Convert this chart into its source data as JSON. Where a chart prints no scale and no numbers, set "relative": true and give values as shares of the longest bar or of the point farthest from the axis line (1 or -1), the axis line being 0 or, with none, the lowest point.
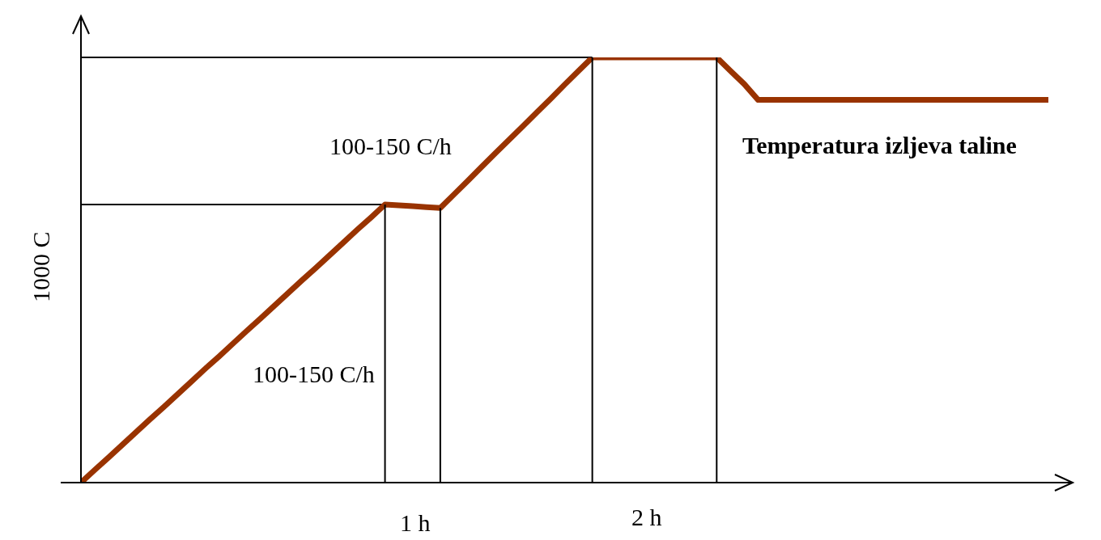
{
  "chart_data": {
    "type": "line",
    "relative": true,
    "ylabel": "1000 C",
    "marker": "none",
    "line_style": "solid",
    "grid": false,
    "legend": false,
    "categories": [
      null,
      null,
      null,
      null,
      null,
      null,
      null,
      null,
      null,
      null,
      null,
      null,
      null,
      null,
      null,
      null,
      null,
      null,
      null,
      null,
      null,
      null,
      null,
      null,
      null,
      null,
      null,
      null,
      null,
      null,
      null,
      null,
      null,
      null,
      null,
      null,
      null,
      null,
      null,
      null,
      null,
      null,
      null,
      null,
      null,
      null,
      null,
      null,
      null,
      null,
      null,
      null,
      null,
      null,
      null,
      null,
      null,
      null,
      null,
      null,
      null,
      null,
      null,
      null,
      null,
      null,
      null,
      null,
      null,
      null,
      null
    ],
    "series": [
      {
        "color": "#993300",
        "values": [
          0,
          0.03,
          0.059,
          0.089,
          0.119,
          0.149,
          0.178,
          0.208,
          0.238,
          0.268,
          0.297,
          0.327,
          0.357,
          0.386,
          0.416,
          0.446,
          0.476,
          0.505,
          0.535,
          0.565,
          0.595,
          0.624,
          0.654,
          0.652,
          0.65,
          0.648,
          0.646,
          0.678,
          0.71,
          0.743,
          0.775,
          0.807,
          0.839,
          0.871,
          0.903,
          0.936,
          0.968,
          1,
          1,
          1,
          1,
          1,
          1,
          1,
          1,
          1,
          1,
          0.968,
          0.937,
          0.9,
          0.9,
          0.9,
          0.9,
          0.9,
          0.9,
          0.9,
          0.9,
          0.9,
          0.9,
          0.9,
          0.9,
          0.9,
          0.9,
          0.9,
          0.9,
          0.9,
          0.9,
          0.9,
          0.9,
          0.9,
          0.9
        ]
      }
    ],
    "ref_lines": [
      {
        "axis": "y",
        "value": 0.654,
        "color": "#000000"
      },
      {
        "axis": "y",
        "value": 1,
        "color": "#000000"
      }
    ],
    "annotations": [
      "100-150 C/h",
      "100-150 C/h",
      "Temperatura izljeva taline",
      "1 h",
      "2 h"
    ]
  }
}
